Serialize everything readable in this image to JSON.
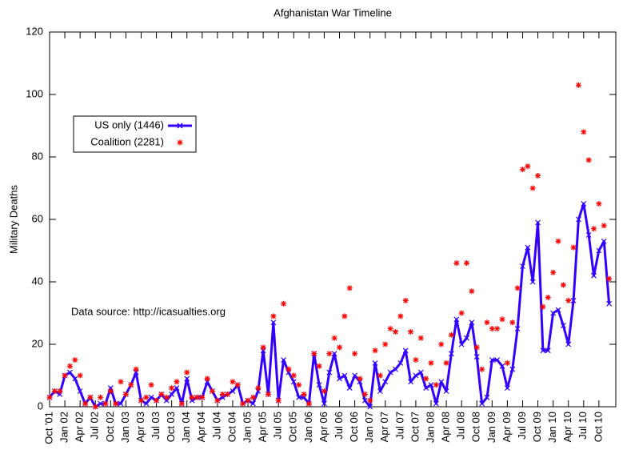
{
  "chart_data": {
    "type": "line",
    "title": "Afghanistan War Timeline",
    "ylabel": "Military Deaths",
    "annotation": "Data source: http://icasualties.org",
    "categories": [
      "Oct '01",
      null,
      null,
      "Jan 02",
      null,
      null,
      "Apr 02",
      null,
      null,
      "Jul 02",
      null,
      null,
      "Oct 02",
      null,
      null,
      "Jan 03",
      null,
      null,
      "Apr 03",
      null,
      null,
      "Jul 03",
      null,
      null,
      "Oct 03",
      null,
      null,
      "Jan 04",
      null,
      null,
      "Apr 04",
      null,
      null,
      "Jul 04",
      null,
      null,
      "Oct 04",
      null,
      null,
      "Jan 05",
      null,
      null,
      "Apr 05",
      null,
      null,
      "Jul 05",
      null,
      null,
      "Oct 05",
      null,
      null,
      "Jan 06",
      null,
      null,
      "Apr 06",
      null,
      null,
      "Jul 06",
      null,
      null,
      "Oct 06",
      null,
      null,
      "Jan 07",
      null,
      null,
      "Apr 07",
      null,
      null,
      "Jul 07",
      null,
      null,
      "Oct 07",
      null,
      null,
      "Jan 08",
      null,
      null,
      "Apr 08",
      null,
      null,
      "Jul 08",
      null,
      null,
      "Oct 08",
      null,
      null,
      "Jan 09",
      null,
      null,
      "Apr 09",
      null,
      null,
      "Jul 09",
      null,
      null,
      "Oct 09",
      null,
      null,
      "Jan 10",
      null,
      null,
      "Apr 10",
      null,
      null,
      "Jul 10",
      null,
      null,
      "Oct 10",
      null,
      null
    ],
    "series": [
      {
        "name": "US only (1446)",
        "color": "#3300ff",
        "style": "linespoints",
        "values": [
          3,
          5,
          4,
          10,
          11,
          9,
          5,
          1,
          3,
          0,
          1,
          1,
          6,
          1,
          1,
          4,
          7,
          11,
          2,
          1,
          3,
          2,
          4,
          2,
          4,
          6,
          1,
          9,
          2,
          3,
          3,
          8,
          5,
          2,
          3,
          4,
          5,
          7,
          1,
          2,
          1,
          5,
          18,
          4,
          27,
          2,
          15,
          11,
          8,
          3,
          3,
          1,
          17,
          7,
          1,
          11,
          17,
          9,
          10,
          6,
          10,
          8,
          2,
          0,
          14,
          5,
          8,
          11,
          12,
          14,
          18,
          8,
          10,
          11,
          6,
          7,
          1,
          8,
          5,
          17,
          28,
          20,
          22,
          27,
          16,
          1,
          3,
          15,
          15,
          13,
          6,
          12,
          25,
          45,
          51,
          40,
          59,
          18,
          18,
          30,
          31,
          26,
          20,
          34,
          60,
          65,
          55,
          42,
          50,
          53,
          33
        ]
      },
      {
        "name": "Coalition (2281)",
        "color": "#ff0000",
        "style": "points",
        "values": [
          3,
          5,
          5,
          10,
          13,
          15,
          10,
          1,
          3,
          0,
          3,
          1,
          5,
          1,
          8,
          4,
          7,
          12,
          2,
          3,
          7,
          2,
          4,
          3,
          6,
          8,
          1,
          11,
          3,
          3,
          3,
          9,
          5,
          2,
          4,
          4,
          8,
          7,
          1,
          2,
          3,
          6,
          19,
          4,
          29,
          2,
          33,
          12,
          10,
          7,
          4,
          1,
          17,
          13,
          5,
          17,
          22,
          19,
          29,
          38,
          17,
          9,
          4,
          2,
          18,
          10,
          20,
          25,
          24,
          29,
          34,
          24,
          15,
          22,
          9,
          14,
          7,
          20,
          14,
          23,
          46,
          30,
          46,
          37,
          19,
          12,
          27,
          25,
          25,
          28,
          14,
          27,
          38,
          76,
          77,
          70,
          74,
          32,
          35,
          43,
          53,
          39,
          34,
          51,
          103,
          88,
          79,
          57,
          65,
          58,
          41
        ]
      }
    ],
    "ylim": [
      0,
      120
    ],
    "yticks": [
      0,
      20,
      40,
      60,
      80,
      100,
      120
    ]
  }
}
